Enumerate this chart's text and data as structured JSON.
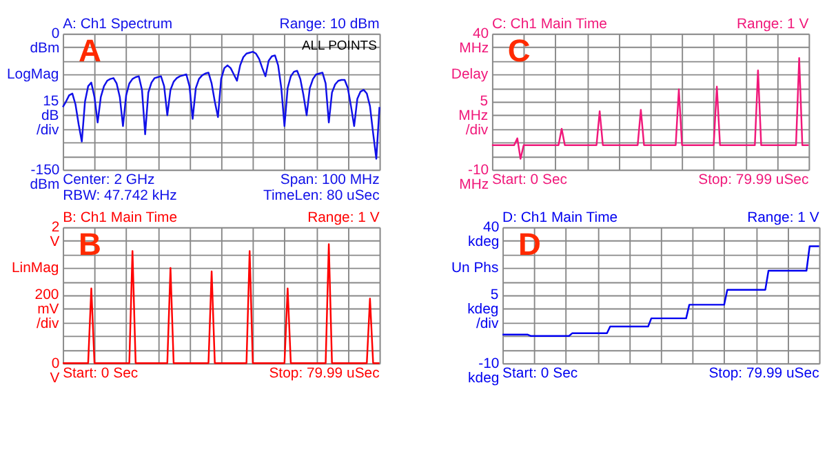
{
  "chart_data": [
    {
      "type": "line",
      "title": "A: Ch1 Spectrum",
      "subtitle": "Range: 10 dBm",
      "ylabel": "LogMag\n15\ndB\n/div",
      "annotations": [
        "A",
        "ALL POINTS",
        "Center: 2 GHz",
        "Span: 100 MHz",
        "RBW: 47.742 kHz",
        "TimeLen: 80 uSec"
      ],
      "categories": [
        null,
        null,
        null,
        null,
        null,
        null,
        null,
        null,
        null,
        null,
        null,
        null,
        null,
        null,
        null,
        null,
        null,
        null,
        null,
        null,
        null,
        null,
        null,
        null,
        null,
        null,
        null,
        null,
        null,
        null,
        null,
        null,
        null,
        null,
        null,
        null,
        null,
        null,
        null,
        null,
        null,
        null,
        null,
        null,
        null,
        null,
        null,
        null,
        null,
        null,
        null,
        null,
        null,
        null,
        null,
        null,
        null,
        null,
        null,
        null,
        null,
        null,
        null,
        null,
        null,
        null,
        null,
        null,
        null,
        null,
        null,
        null,
        null,
        null,
        null,
        null,
        null,
        null,
        null,
        null,
        null,
        null,
        null,
        null,
        null,
        null,
        null,
        null,
        null,
        null,
        null,
        null,
        null,
        null,
        null,
        null,
        null,
        null,
        null,
        null,
        null
      ],
      "series": [
        {
          "color": "#1010e8",
          "values": [
            -81,
            -75,
            -68,
            -66,
            -78,
            -100,
            -119,
            -75,
            -58,
            -54,
            -70,
            -98,
            -70,
            -58,
            -52,
            -50,
            -49,
            -55,
            -70,
            -102,
            -68,
            -55,
            -50,
            -48,
            -47,
            -62,
            -111,
            -65,
            -54,
            -49,
            -48,
            -47,
            -58,
            -90,
            -62,
            -53,
            -49,
            -47,
            -46,
            -45,
            -58,
            -94,
            -60,
            -50,
            -46,
            -44,
            -43,
            -55,
            -75,
            -92,
            -50,
            -38,
            -35,
            -38,
            -45,
            -52,
            -35,
            -26,
            -22,
            -21,
            -20,
            -22,
            -28,
            -38,
            -47,
            -30,
            -25,
            -24,
            -35,
            -60,
            -102,
            -60,
            -47,
            -42,
            -41,
            -50,
            -68,
            -90,
            -60,
            -50,
            -45,
            -44,
            -43,
            -55,
            -98,
            -65,
            -56,
            -52,
            -51,
            -51,
            -60,
            -80,
            -102,
            -72,
            -64,
            -62,
            -66,
            -80,
            -110,
            -138,
            -81
          ]
        }
      ],
      "ylim": [
        -150,
        0
      ],
      "yticks": [
        {
          "value": -150,
          "label": "-150 dBm"
        },
        {
          "value": -135,
          "label": null
        },
        {
          "value": -120,
          "label": null
        },
        {
          "value": -105,
          "label": null
        },
        {
          "value": -90,
          "label": null
        },
        {
          "value": -75,
          "label": null
        },
        {
          "value": -60,
          "label": null
        },
        {
          "value": -45,
          "label": null
        },
        {
          "value": -30,
          "label": null
        },
        {
          "value": -15,
          "label": null
        },
        {
          "value": 0,
          "label": "0 dBm"
        }
      ],
      "grid": true,
      "tick_labels": "y"
    },
    {
      "type": "line",
      "title": "C: Ch1 Main Time",
      "subtitle": "Range: 1  V",
      "ylabel": "Delay\n5\nMHz\n/div",
      "annotations": [
        "C",
        "Start: 0  Sec",
        "Stop: 79.99 uSec"
      ],
      "categories": [
        null,
        null,
        null,
        null,
        null,
        null,
        null,
        null,
        null,
        null,
        null,
        null,
        null,
        null,
        null,
        null,
        null,
        null,
        null,
        null,
        null,
        null,
        null,
        null,
        null,
        null,
        null,
        null,
        null,
        null,
        null,
        null,
        null,
        null,
        null,
        null,
        null,
        null,
        null,
        null,
        null,
        null,
        null,
        null,
        null,
        null,
        null,
        null,
        null,
        null,
        null,
        null,
        null,
        null,
        null,
        null,
        null,
        null,
        null,
        null,
        null,
        null,
        null,
        null,
        null,
        null,
        null,
        null,
        null,
        null,
        null,
        null,
        null,
        null,
        null,
        null,
        null,
        null,
        null,
        null,
        null,
        null,
        null,
        null,
        null,
        null,
        null,
        null,
        null,
        null,
        null,
        null,
        null,
        null,
        null,
        null,
        null,
        null,
        null,
        null,
        null
      ],
      "series": [
        {
          "color": "#f0187a",
          "values": [
            -1,
            -1,
            -1,
            -1,
            -1,
            -1,
            -1,
            -1,
            1.5,
            -6,
            -1,
            -1,
            -1,
            -1,
            -1,
            -1,
            -1,
            -1,
            -1,
            -1,
            -1,
            -1,
            5,
            -1,
            -1,
            -1,
            -1,
            -1,
            -1,
            -1,
            -1,
            -1,
            -1,
            -1,
            11.5,
            -1,
            -1,
            -1,
            -1,
            -1,
            -1,
            -1,
            -1,
            -1,
            -1,
            -1,
            -1,
            12,
            -1,
            -1,
            -1,
            -1,
            -1,
            -1,
            -1,
            -1,
            -1,
            -1,
            -1,
            19.5,
            -1,
            -1,
            -1,
            -1,
            -1,
            -1,
            -1,
            -1,
            -1,
            -1,
            -1,
            20.5,
            -1,
            -1,
            -1,
            -1,
            -1,
            -1,
            -1,
            -1,
            -1,
            -1,
            -1,
            -1,
            26.5,
            -1,
            -1,
            -1,
            -1,
            -1,
            -1,
            -1,
            -1,
            -1,
            -1,
            -1,
            -1,
            31,
            -1,
            -1,
            -1
          ]
        }
      ],
      "ylim": [
        -10,
        40
      ],
      "yticks": [
        {
          "value": -10,
          "label": "-10 MHz"
        },
        {
          "value": -5,
          "label": null
        },
        {
          "value": 0,
          "label": null
        },
        {
          "value": 5,
          "label": null
        },
        {
          "value": 10,
          "label": null
        },
        {
          "value": 15,
          "label": null
        },
        {
          "value": 20,
          "label": null
        },
        {
          "value": 25,
          "label": null
        },
        {
          "value": 30,
          "label": null
        },
        {
          "value": 35,
          "label": null
        },
        {
          "value": 40,
          "label": "40 MHz"
        }
      ],
      "grid": true,
      "tick_labels": "y"
    },
    {
      "type": "line",
      "title": "B: Ch1 Main Time",
      "subtitle": "Range: 1  V",
      "ylabel": "LinMag\n200\nmV\n/div",
      "annotations": [
        "B",
        "Start: 0  Sec",
        "Stop: 79.99 uSec"
      ],
      "categories": [
        null,
        null,
        null,
        null,
        null,
        null,
        null,
        null,
        null,
        null,
        null,
        null,
        null,
        null,
        null,
        null,
        null,
        null,
        null,
        null,
        null,
        null,
        null,
        null,
        null,
        null,
        null,
        null,
        null,
        null,
        null,
        null,
        null,
        null,
        null,
        null,
        null,
        null,
        null,
        null,
        null,
        null,
        null,
        null,
        null,
        null,
        null,
        null,
        null,
        null,
        null,
        null,
        null,
        null,
        null,
        null,
        null,
        null,
        null,
        null,
        null,
        null,
        null,
        null,
        null,
        null,
        null,
        null,
        null,
        null,
        null,
        null,
        null,
        null,
        null,
        null,
        null,
        null,
        null,
        null,
        null,
        null,
        null,
        null,
        null,
        null,
        null,
        null,
        null,
        null,
        null,
        null,
        null,
        null,
        null,
        null,
        null,
        null,
        null,
        null,
        null
      ],
      "series": [
        {
          "color": "#ff0000",
          "values": [
            0,
            0,
            0,
            0,
            0,
            0,
            0,
            0,
            0,
            1.1,
            0,
            0,
            0,
            0,
            0,
            0,
            0,
            0,
            0,
            0,
            0,
            0,
            1.65,
            0,
            0,
            0,
            0,
            0,
            0,
            0,
            0,
            0,
            0,
            0,
            1.4,
            0,
            0,
            0,
            0,
            0,
            0,
            0,
            0,
            0,
            0,
            0,
            0,
            1.35,
            0,
            0,
            0,
            0,
            0,
            0,
            0,
            0,
            0,
            0,
            0,
            1.65,
            0,
            0,
            0,
            0,
            0,
            0,
            0,
            0,
            0,
            0,
            0,
            1.1,
            0,
            0,
            0,
            0,
            0,
            0,
            0,
            0,
            0,
            0,
            0,
            0,
            1.75,
            0,
            0,
            0,
            0,
            0,
            0,
            0,
            0,
            0,
            0,
            0,
            0,
            0.95,
            0,
            0,
            0
          ]
        }
      ],
      "ylim": [
        0,
        2
      ],
      "yticks": [
        {
          "value": 0,
          "label": "0 V"
        },
        {
          "value": 0.2,
          "label": null
        },
        {
          "value": 0.4,
          "label": null
        },
        {
          "value": 0.6,
          "label": null
        },
        {
          "value": 0.8,
          "label": null
        },
        {
          "value": 1,
          "label": null
        },
        {
          "value": 1.2,
          "label": null
        },
        {
          "value": 1.4,
          "label": null
        },
        {
          "value": 1.6,
          "label": null
        },
        {
          "value": 1.8,
          "label": null
        },
        {
          "value": 2,
          "label": "2 V"
        }
      ],
      "grid": true,
      "tick_labels": "y"
    },
    {
      "type": "line",
      "title": "D: Ch1 Main Time",
      "subtitle": "Range: 1  V",
      "ylabel": "Un Phs\n5\nkdeg\n/div",
      "annotations": [
        "D",
        "Start: 0  Sec",
        "Stop: 79.99 uSec"
      ],
      "categories": [
        null,
        null,
        null,
        null,
        null,
        null,
        null,
        null,
        null,
        null,
        null,
        null,
        null,
        null,
        null,
        null,
        null,
        null,
        null,
        null,
        null,
        null,
        null,
        null,
        null,
        null,
        null,
        null,
        null,
        null,
        null,
        null,
        null,
        null,
        null,
        null,
        null,
        null,
        null,
        null,
        null,
        null,
        null,
        null,
        null,
        null,
        null,
        null,
        null,
        null,
        null,
        null,
        null,
        null,
        null,
        null,
        null,
        null,
        null,
        null,
        null,
        null,
        null,
        null,
        null,
        null,
        null,
        null,
        null,
        null,
        null,
        null,
        null,
        null,
        null,
        null,
        null,
        null,
        null,
        null,
        null,
        null,
        null,
        null,
        null,
        null,
        null,
        null,
        null,
        null,
        null,
        null,
        null,
        null,
        null,
        null,
        null,
        null,
        null,
        null,
        null
      ],
      "series": [
        {
          "color": "#0000f0",
          "values": [
            0.5,
            0.5,
            0.5,
            0.5,
            0.5,
            0.5,
            0.5,
            0.5,
            0.5,
            0,
            0,
            0,
            0,
            0,
            0,
            0,
            0,
            0,
            0,
            0,
            0,
            0,
            1,
            1,
            1,
            1,
            1,
            1,
            1,
            1,
            1,
            1,
            1,
            1,
            3.5,
            3.5,
            3.5,
            3.5,
            3.5,
            3.5,
            3.5,
            3.5,
            3.5,
            3.5,
            3.5,
            3.5,
            3.5,
            6.5,
            6.5,
            6.5,
            6.5,
            6.5,
            6.5,
            6.5,
            6.5,
            6.5,
            6.5,
            6.5,
            6.5,
            11.5,
            11.5,
            11.5,
            11.5,
            11.5,
            11.5,
            11.5,
            11.5,
            11.5,
            11.5,
            11.5,
            11.5,
            17,
            17,
            17,
            17,
            17,
            17,
            17,
            17,
            17,
            17,
            17,
            17,
            17,
            24,
            24,
            24,
            24,
            24,
            24,
            24,
            24,
            24,
            24,
            24,
            24,
            24,
            33,
            33,
            33,
            33
          ]
        }
      ],
      "ylim": [
        -10,
        40
      ],
      "yticks": [
        {
          "value": -10,
          "label": "-10 kdeg"
        },
        {
          "value": -5,
          "label": null
        },
        {
          "value": 0,
          "label": null
        },
        {
          "value": 5,
          "label": null
        },
        {
          "value": 10,
          "label": null
        },
        {
          "value": 15,
          "label": null
        },
        {
          "value": 20,
          "label": null
        },
        {
          "value": 25,
          "label": null
        },
        {
          "value": 30,
          "label": null
        },
        {
          "value": 35,
          "label": null
        },
        {
          "value": 40,
          "label": "40 kdeg"
        }
      ],
      "grid": true,
      "tick_labels": "y"
    }
  ]
}
